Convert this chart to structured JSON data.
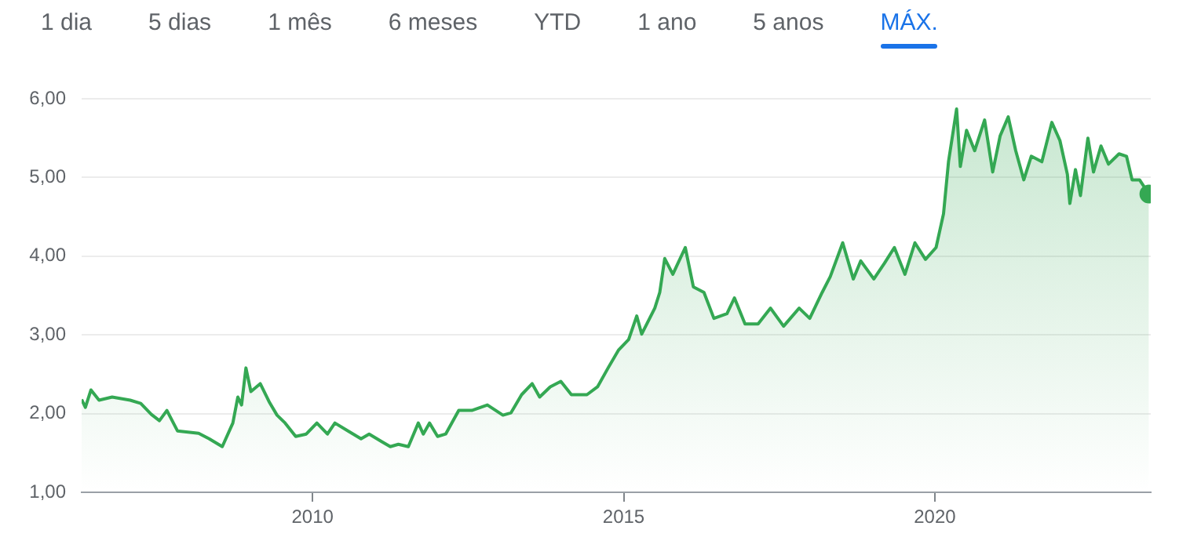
{
  "chart_data": {
    "type": "area",
    "annotations": [
      "1 dia",
      "5 dias",
      "1 mês",
      "6 meses",
      "YTD",
      "1 ano",
      "5 anos",
      "MÁX."
    ],
    "x": [
      2006.29,
      2006.35,
      2006.44,
      2006.57,
      2006.78,
      2007.07,
      2007.24,
      2007.41,
      2007.54,
      2007.66,
      2007.83,
      2008.17,
      2008.34,
      2008.55,
      2008.72,
      2008.8,
      2008.86,
      2008.93,
      2009.01,
      2009.16,
      2009.31,
      2009.43,
      2009.56,
      2009.73,
      2009.9,
      2010.07,
      2010.24,
      2010.36,
      2010.57,
      2010.78,
      2010.91,
      2011.12,
      2011.25,
      2011.38,
      2011.54,
      2011.7,
      2011.78,
      2011.88,
      2012.01,
      2012.14,
      2012.35,
      2012.56,
      2012.81,
      2013.06,
      2013.19,
      2013.36,
      2013.53,
      2013.65,
      2013.82,
      2013.99,
      2014.16,
      2014.41,
      2014.58,
      2014.75,
      2014.92,
      2015.08,
      2015.21,
      2015.29,
      2015.5,
      2015.58,
      2015.66,
      2015.79,
      2015.99,
      2016.12,
      2016.29,
      2016.45,
      2016.66,
      2016.78,
      2016.95,
      2017.16,
      2017.36,
      2017.57,
      2017.82,
      2017.99,
      2018.19,
      2018.32,
      2018.52,
      2018.69,
      2018.81,
      2019.02,
      2019.19,
      2019.35,
      2019.52,
      2019.68,
      2019.85,
      2020.02,
      2020.14,
      2020.22,
      2020.35,
      2020.41,
      2020.51,
      2020.64,
      2020.8,
      2020.93,
      2021.05,
      2021.18,
      2021.3,
      2021.43,
      2021.55,
      2021.72,
      2021.88,
      2022.01,
      2022.13,
      2022.17,
      2022.26,
      2022.34,
      2022.46,
      2022.55,
      2022.67,
      2022.79,
      2022.96,
      2023.08,
      2023.17,
      2023.29,
      2023.44
    ],
    "series": [
      {
        "color": "#34a853",
        "values": [
          2.18,
          2.08,
          2.3,
          2.17,
          2.21,
          2.17,
          2.13,
          1.99,
          1.91,
          2.04,
          1.78,
          1.75,
          1.68,
          1.58,
          1.88,
          2.21,
          2.11,
          2.58,
          2.28,
          2.38,
          2.14,
          1.98,
          1.88,
          1.71,
          1.74,
          1.88,
          1.74,
          1.88,
          1.78,
          1.68,
          1.74,
          1.64,
          1.58,
          1.61,
          1.58,
          1.88,
          1.74,
          1.88,
          1.71,
          1.74,
          2.04,
          2.04,
          2.11,
          1.98,
          2.01,
          2.24,
          2.38,
          2.21,
          2.34,
          2.41,
          2.24,
          2.24,
          2.34,
          2.58,
          2.81,
          2.94,
          3.24,
          3.01,
          3.34,
          3.54,
          3.97,
          3.77,
          4.11,
          3.61,
          3.54,
          3.21,
          3.27,
          3.47,
          3.14,
          3.14,
          3.34,
          3.11,
          3.34,
          3.21,
          3.54,
          3.74,
          4.17,
          3.71,
          3.94,
          3.71,
          3.91,
          4.11,
          3.77,
          4.17,
          3.96,
          4.11,
          4.54,
          5.2,
          5.87,
          5.14,
          5.6,
          5.34,
          5.73,
          5.07,
          5.53,
          5.77,
          5.34,
          4.97,
          5.27,
          5.2,
          5.7,
          5.47,
          5.04,
          4.67,
          5.1,
          4.77,
          5.5,
          5.07,
          5.4,
          5.17,
          5.3,
          5.27,
          4.97,
          4.97,
          4.79
        ]
      }
    ],
    "xlim": [
      2006.29,
      2023.47
    ],
    "xticks": [
      2010,
      2015,
      2020
    ],
    "ylim": [
      1,
      6
    ],
    "yticks": [
      {
        "value": 1,
        "label": "1,00"
      },
      {
        "value": 2,
        "label": "2,00"
      },
      {
        "value": 3,
        "label": "3,00"
      },
      {
        "value": 4,
        "label": "4,00"
      },
      {
        "value": 5,
        "label": "5,00"
      },
      {
        "value": 6,
        "label": "6,00"
      }
    ],
    "grid": "y",
    "legend": false
  }
}
